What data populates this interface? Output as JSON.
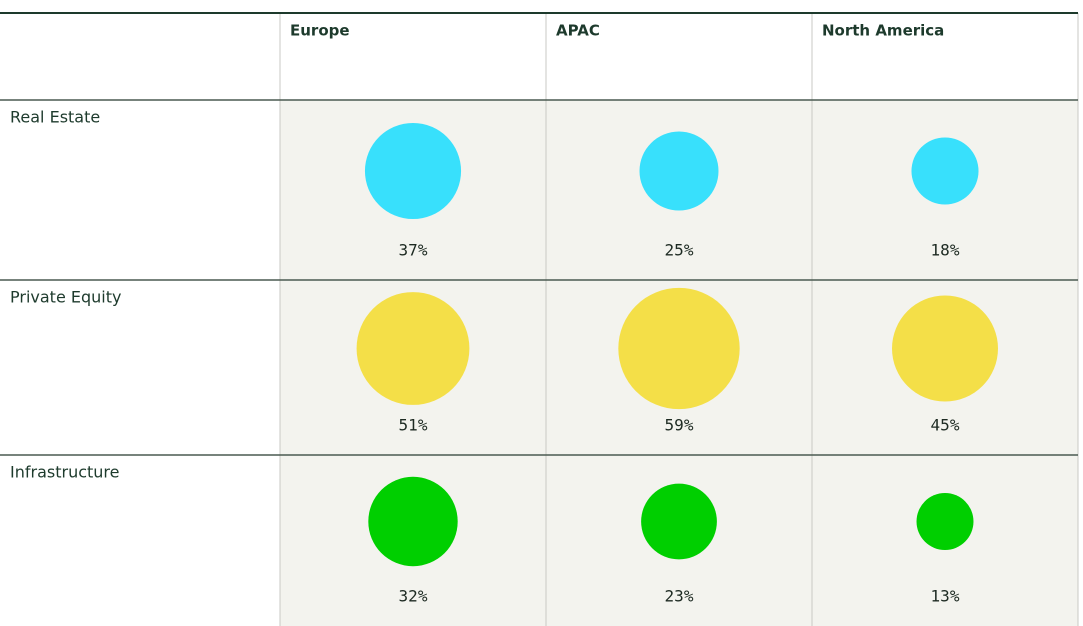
{
  "chart_data": {
    "type": "bubble",
    "categories": [
      "Europe",
      "APAC",
      "North America"
    ],
    "series": [
      {
        "name": "Real Estate",
        "color": "#38e0fc",
        "values": [
          37,
          25,
          18
        ],
        "value_labels": [
          "37%",
          "25%",
          "18%"
        ]
      },
      {
        "name": "Private Equity",
        "color": "#f4df48",
        "values": [
          51,
          59,
          45
        ],
        "value_labels": [
          "51%",
          "59%",
          "45%"
        ]
      },
      {
        "name": "Infrastructure",
        "color": "#00cf00",
        "values": [
          32,
          23,
          13
        ],
        "value_labels": [
          "32%",
          "23%",
          "13%"
        ]
      }
    ]
  }
}
